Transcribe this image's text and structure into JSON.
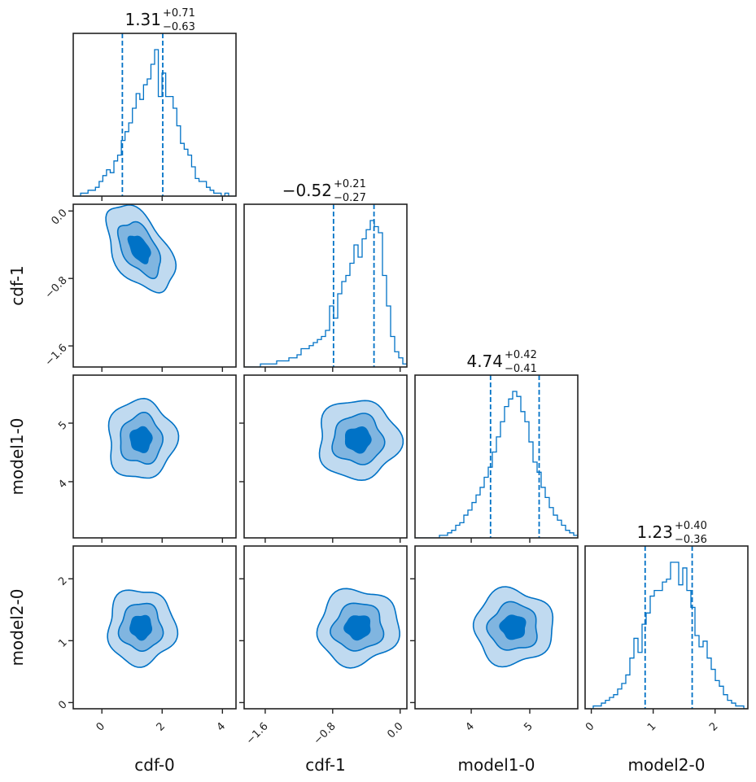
{
  "chart_data": {
    "type": "corner",
    "params": [
      {
        "name": "cdf-0",
        "range": [
          -0.95,
          4.45
        ],
        "ticks": [
          0,
          2,
          4
        ],
        "tick_labels": [
          "0",
          "2",
          "4"
        ],
        "median": 1.31,
        "plus": 0.71,
        "minus": 0.63,
        "title_main": "1.31",
        "title_plus": "+0.71",
        "title_minus": "−0.63",
        "hist": [
          0,
          0,
          1,
          1,
          2,
          2,
          3,
          5,
          7,
          9,
          8,
          12,
          14,
          19,
          22,
          25,
          30,
          35,
          33,
          38,
          40,
          45,
          50,
          34,
          42,
          34,
          34,
          30,
          24,
          18,
          16,
          14,
          10,
          6,
          5,
          5,
          3,
          2,
          1,
          1,
          0,
          1,
          0,
          0
        ]
      },
      {
        "name": "cdf-1",
        "range": [
          -1.85,
          0.08
        ],
        "ticks": [
          -1.6,
          -0.8,
          0.0
        ],
        "tick_labels": [
          "−1.6",
          "−0.8",
          "0.0"
        ],
        "median": -0.52,
        "plus": 0.21,
        "minus": 0.27,
        "title_main": "−0.52",
        "title_plus": "+0.21",
        "title_minus": "−0.27",
        "hist": [
          0,
          0,
          0,
          0,
          1,
          1,
          1,
          1,
          2,
          2,
          2,
          3,
          3,
          4,
          6,
          6,
          7,
          8,
          9,
          10,
          12,
          20,
          16,
          24,
          28,
          30,
          34,
          40,
          36,
          42,
          45,
          48,
          46,
          44,
          30,
          20,
          10,
          5,
          3,
          1
        ]
      },
      {
        "name": "model1-0",
        "range": [
          3.04,
          5.82
        ],
        "ticks": [
          4,
          5
        ],
        "tick_labels": [
          "4",
          "5"
        ],
        "median": 4.74,
        "plus": 0.42,
        "minus": 0.41,
        "title_main": "4.74",
        "title_plus": "+0.42",
        "title_minus": "−0.41",
        "hist": [
          0,
          0,
          0,
          0,
          0,
          0,
          1,
          1,
          2,
          3,
          5,
          6,
          9,
          11,
          14,
          17,
          20,
          24,
          28,
          34,
          40,
          46,
          52,
          55,
          58,
          56,
          50,
          46,
          38,
          30,
          26,
          20,
          16,
          12,
          9,
          7,
          5,
          3,
          2,
          1
        ]
      },
      {
        "name": "model2-0",
        "range": [
          -0.1,
          2.53
        ],
        "ticks": [
          0,
          1,
          2
        ],
        "tick_labels": [
          "0",
          "1",
          "2"
        ],
        "median": 1.23,
        "plus": 0.4,
        "minus": 0.36,
        "title_main": "1.23",
        "title_plus": "+0.40",
        "title_minus": "−0.36",
        "hist": [
          0,
          0,
          1,
          1,
          2,
          3,
          4,
          5,
          7,
          9,
          12,
          18,
          25,
          20,
          30,
          34,
          40,
          42,
          42,
          45,
          46,
          52,
          52,
          44,
          50,
          42,
          36,
          26,
          22,
          24,
          18,
          14,
          10,
          8,
          5,
          3,
          2,
          1,
          1,
          0
        ]
      }
    ],
    "pairs": [
      {
        "x": "cdf-0",
        "y": "cdf-1",
        "cx": 1.25,
        "cy": -0.45,
        "sx": 0.7,
        "sy": 0.32,
        "rho": -0.5
      },
      {
        "x": "cdf-0",
        "y": "model1-0",
        "cx": 1.3,
        "cy": 4.72,
        "sx": 0.7,
        "sy": 0.42,
        "rho": 0.0
      },
      {
        "x": "cdf-1",
        "y": "model1-0",
        "cx": -0.5,
        "cy": 4.72,
        "sx": 0.3,
        "sy": 0.42,
        "rho": 0.0
      },
      {
        "x": "cdf-0",
        "y": "model2-0",
        "cx": 1.3,
        "cy": 1.22,
        "sx": 0.7,
        "sy": 0.38,
        "rho": 0.0
      },
      {
        "x": "cdf-1",
        "y": "model2-0",
        "cx": -0.5,
        "cy": 1.22,
        "sx": 0.3,
        "sy": 0.38,
        "rho": 0.05
      },
      {
        "x": "model1-0",
        "y": "model2-0",
        "cx": 4.72,
        "cy": 1.22,
        "sx": 0.42,
        "sy": 0.38,
        "rho": 0.0
      }
    ],
    "contour_levels_sigma": [
      0.5,
      1.0,
      1.6
    ],
    "colors": {
      "line": "#0072c6",
      "fill_outer": "#c0daf0",
      "fill_mid": "#80b5e0",
      "fill_inner": "#0072c6",
      "axes": "#222222"
    }
  }
}
